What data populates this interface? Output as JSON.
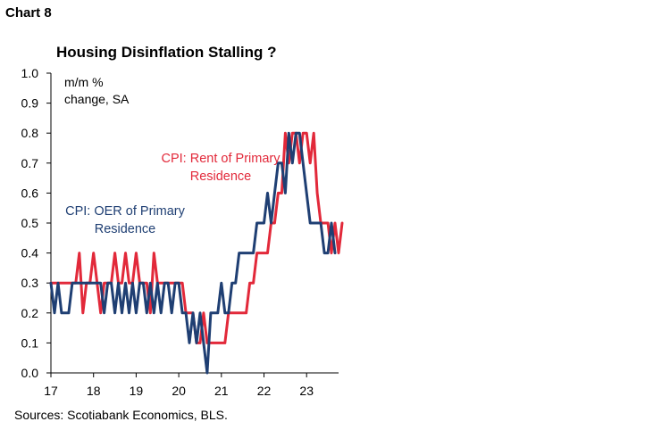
{
  "header": {
    "chart_number": "Chart 8",
    "title": "Housing Disinflation Stalling ?"
  },
  "footer": {
    "source": "Sources: Scotiabank Economics, BLS."
  },
  "colors": {
    "rent": "#e2293a",
    "oer": "#1f3f73"
  },
  "chart_data": {
    "type": "line",
    "title": "Housing Disinflation Stalling ?",
    "ylabel_lines": [
      "m/m %",
      "change, SA"
    ],
    "ylim": [
      0,
      1
    ],
    "yticks": [
      "0.0",
      "0.1",
      "0.2",
      "0.3",
      "0.4",
      "0.5",
      "0.6",
      "0.7",
      "0.8",
      "0.9",
      "1.0"
    ],
    "xlim": [
      2017.0,
      2023.75
    ],
    "xticks": [
      {
        "value": 2017,
        "label": "17"
      },
      {
        "value": 2018,
        "label": "18"
      },
      {
        "value": 2019,
        "label": "19"
      },
      {
        "value": 2020,
        "label": "20"
      },
      {
        "value": 2021,
        "label": "21"
      },
      {
        "value": 2022,
        "label": "22"
      },
      {
        "value": 2023,
        "label": "23"
      }
    ],
    "x_start": "2017-01",
    "frequency": "monthly",
    "grid": false,
    "series": [
      {
        "name": "CPI: Rent of Primary Residence",
        "label_lines": [
          "CPI: Rent of Primary",
          "Residence"
        ],
        "color": "#e2293a",
        "values": [
          0.3,
          0.3,
          0.3,
          0.3,
          0.3,
          0.3,
          0.3,
          0.3,
          0.4,
          0.2,
          0.3,
          0.3,
          0.4,
          0.3,
          0.2,
          0.3,
          0.3,
          0.3,
          0.4,
          0.3,
          0.3,
          0.4,
          0.3,
          0.3,
          0.4,
          0.3,
          0.3,
          0.3,
          0.2,
          0.4,
          0.3,
          0.3,
          0.3,
          0.3,
          0.3,
          0.3,
          0.3,
          0.3,
          0.2,
          0.2,
          0.2,
          0.1,
          0.1,
          0.2,
          0.1,
          0.1,
          0.1,
          0.1,
          0.1,
          0.1,
          0.2,
          0.2,
          0.2,
          0.2,
          0.2,
          0.2,
          0.3,
          0.3,
          0.4,
          0.4,
          0.4,
          0.4,
          0.5,
          0.5,
          0.6,
          0.6,
          0.8,
          0.7,
          0.8,
          0.8,
          0.7,
          0.8,
          0.8,
          0.7,
          0.8,
          0.6,
          0.5,
          0.5,
          0.5,
          0.4,
          0.5,
          0.4,
          0.5
        ]
      },
      {
        "name": "CPI: OER of Primary Residence",
        "label_lines": [
          "CPI: OER of Primary",
          "Residence"
        ],
        "color": "#1f3f73",
        "values": [
          0.3,
          0.2,
          0.3,
          0.2,
          0.2,
          0.2,
          0.3,
          0.3,
          0.3,
          0.3,
          0.3,
          0.3,
          0.3,
          0.3,
          0.3,
          0.2,
          0.3,
          0.3,
          0.2,
          0.3,
          0.2,
          0.3,
          0.2,
          0.3,
          0.2,
          0.3,
          0.3,
          0.2,
          0.3,
          0.2,
          0.3,
          0.2,
          0.3,
          0.3,
          0.2,
          0.3,
          0.3,
          0.2,
          0.2,
          0.1,
          0.2,
          0.1,
          0.2,
          0.1,
          0.0,
          0.2,
          0.2,
          0.2,
          0.3,
          0.2,
          0.2,
          0.3,
          0.3,
          0.4,
          0.4,
          0.4,
          0.4,
          0.4,
          0.5,
          0.5,
          0.5,
          0.6,
          0.5,
          0.6,
          0.7,
          0.7,
          0.6,
          0.8,
          0.7,
          0.8,
          0.8,
          0.7,
          0.6,
          0.5,
          0.5,
          0.5,
          0.5,
          0.4,
          0.4,
          0.5,
          0.4
        ]
      }
    ]
  }
}
